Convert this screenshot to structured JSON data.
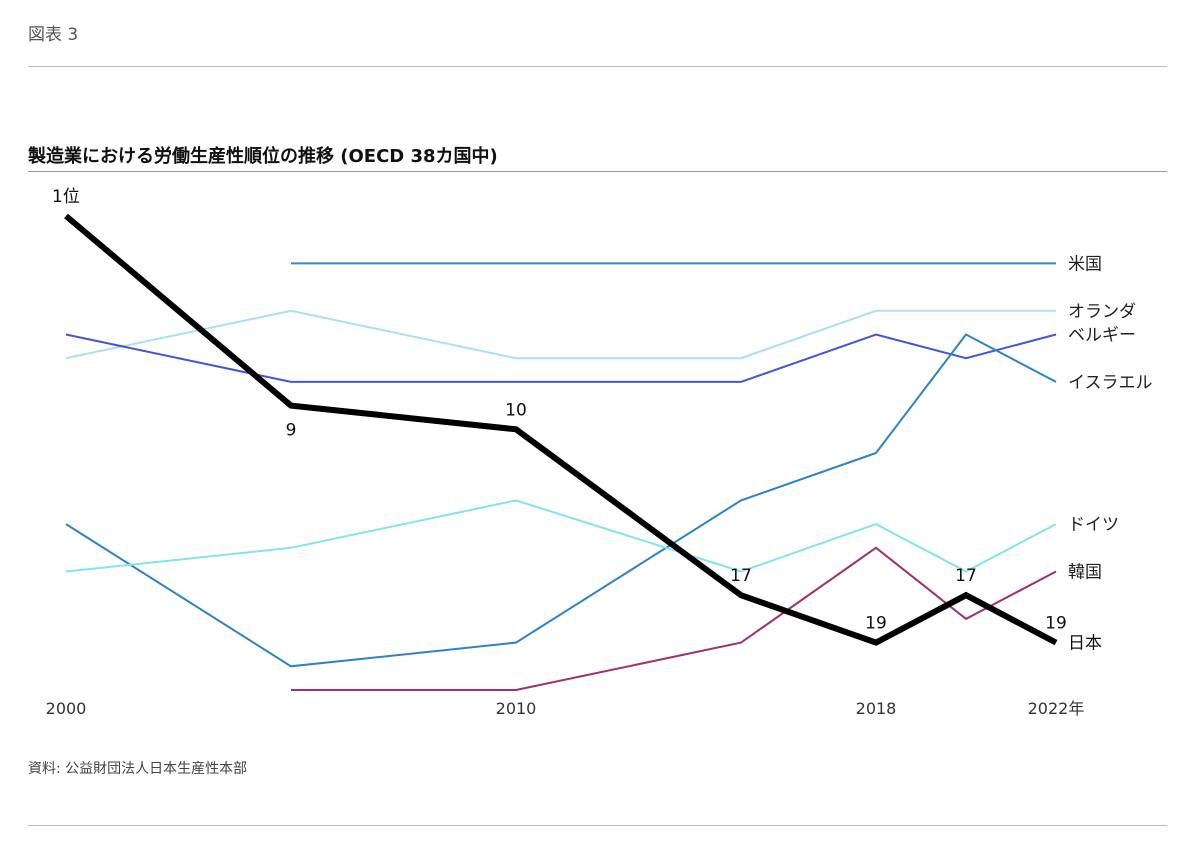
{
  "figure_label": "図表 3",
  "source": "資料: 公益財団法人日本生産性本部",
  "chart_data": {
    "type": "line",
    "title": "製造業における労働生産性順位の推移 (OECD 38カ国中)",
    "x": [
      2000,
      2005,
      2010,
      2015,
      2018,
      2020,
      2022
    ],
    "x_tick_labels": [
      {
        "x": 2000,
        "label": "2000"
      },
      {
        "x": 2010,
        "label": "2010"
      },
      {
        "x": 2018,
        "label": "2018"
      },
      {
        "x": 2022,
        "label": "2022年"
      }
    ],
    "y_axis": "rank (inverted)",
    "ylim": [
      1,
      21
    ],
    "grid": false,
    "series": [
      {
        "name": "米国",
        "color": "#2c8fc8",
        "width": 2,
        "values": [
          null,
          3,
          3,
          3,
          3,
          3,
          3
        ]
      },
      {
        "name": "オランダ",
        "color": "#a8e2ef",
        "width": 2,
        "values": [
          7,
          5,
          7,
          7,
          5,
          5,
          5
        ]
      },
      {
        "name": "ベルギー",
        "color": "#4455d8",
        "width": 2,
        "values": [
          6,
          8,
          8,
          8,
          6,
          7,
          6
        ]
      },
      {
        "name": "イスラエル",
        "color": "#2c84c6",
        "width": 2,
        "values": [
          14,
          20,
          19,
          13,
          11,
          6,
          8
        ]
      },
      {
        "name": "ドイツ",
        "color": "#7fe6ec",
        "width": 2,
        "values": [
          16,
          15,
          13,
          16,
          14,
          16,
          14
        ]
      },
      {
        "name": "韓国",
        "color": "#a0306e",
        "width": 2,
        "values": [
          null,
          21,
          21,
          19,
          15,
          18,
          16
        ]
      },
      {
        "name": "日本",
        "color": "#000000",
        "width": 6,
        "values": [
          1,
          9,
          10,
          17,
          19,
          17,
          19
        ]
      }
    ],
    "data_labels": [
      {
        "series": "日本",
        "x": 2000,
        "label": "1位"
      },
      {
        "series": "日本",
        "x": 2005,
        "label": "9"
      },
      {
        "series": "日本",
        "x": 2010,
        "label": "10"
      },
      {
        "series": "日本",
        "x": 2015,
        "label": "17"
      },
      {
        "series": "日本",
        "x": 2018,
        "label": "19"
      },
      {
        "series": "日本",
        "x": 2020,
        "label": "17"
      },
      {
        "series": "日本",
        "x": 2022,
        "label": "19"
      }
    ]
  }
}
